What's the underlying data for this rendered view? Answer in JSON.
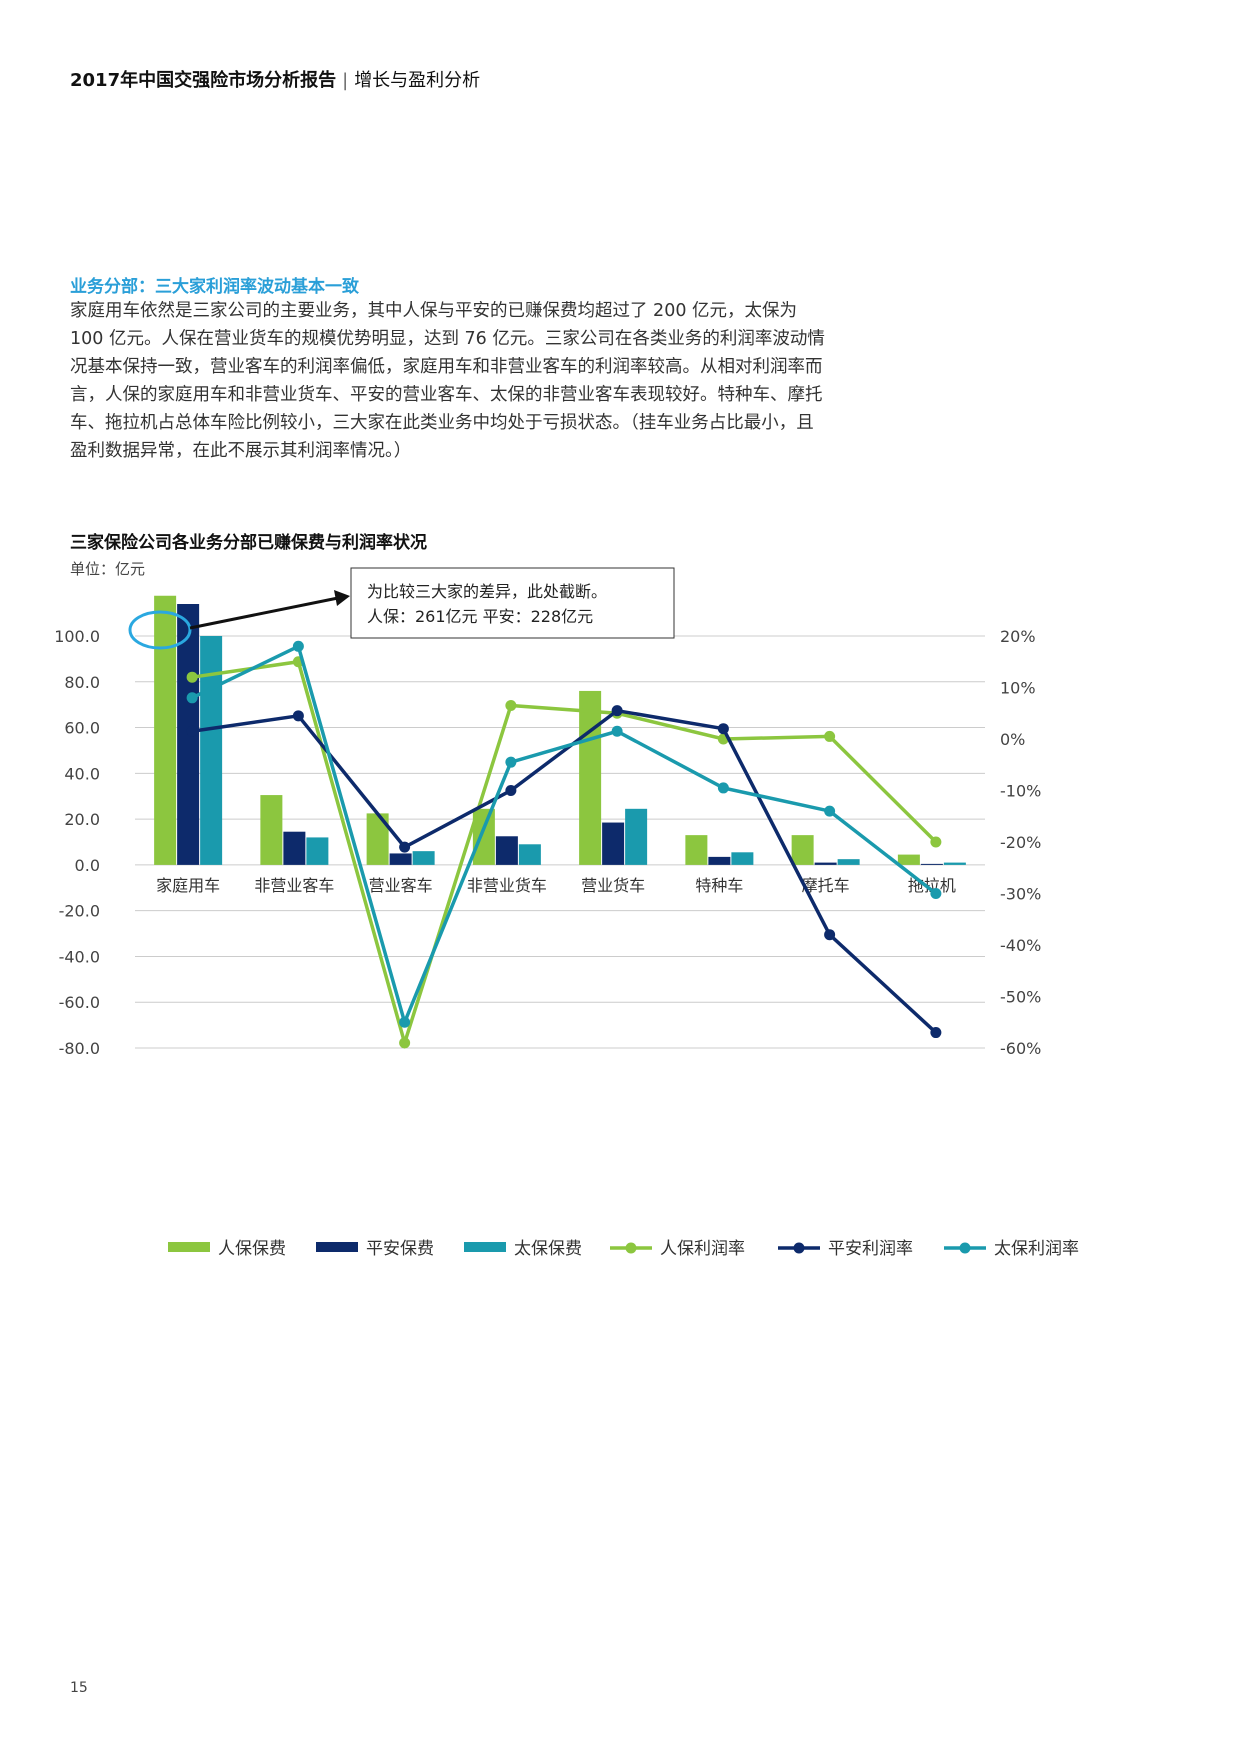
{
  "header": {
    "report_title": "2017年中国交强险市场分析报告",
    "section": "增长与盈利分析"
  },
  "section_heading": "业务分部：三大家利润率波动基本一致",
  "body_text": "家庭用车依然是三家公司的主要业务，其中人保与平安的已赚保费均超过了 200 亿元，太保为 100 亿元。人保在营业货车的规模优势明显，达到 76 亿元。三家公司在各类业务的利润率波动情况基本保持一致，营业客车的利润率偏低，家庭用车和非营业客车的利润率较高。从相对利润率而言，人保的家庭用车和非营业货车、平安的营业客车、太保的非营业客车表现较好。特种车、摩托车、拖拉机占总体车险比例较小，三大家在此类业务中均处于亏损状态。（挂车业务占比最小，且盈利数据异常，在此不展示其利润率情况。）",
  "chart_title": "三家保险公司各业务分部已赚保费与利润率状况",
  "unit_label": "单位：亿元",
  "page_number": "15",
  "colors": {
    "green": "#8cc63f",
    "navy": "#0d2a6b",
    "teal": "#1a9aad",
    "grid": "#cccccc",
    "text": "#444444"
  },
  "chart_data": {
    "type": "bar+line",
    "categories": [
      "家庭用车",
      "非营业客车",
      "营业客车",
      "非营业货车",
      "营业货车",
      "特种车",
      "摩托车",
      "拖拉机"
    ],
    "left_axis": {
      "ylim": [
        -80,
        100
      ],
      "ticks": [
        "100.0",
        "80.0",
        "60.0",
        "40.0",
        "20.0",
        "0.0",
        "-20.0",
        "-40.0",
        "-60.0",
        "-80.0"
      ]
    },
    "right_axis": {
      "ylim": [
        -60,
        20
      ],
      "ticks": [
        "20%",
        "10%",
        "0%",
        "-10%",
        "-20%",
        "-30%",
        "-40%",
        "-50%",
        "-60%"
      ]
    },
    "bar_series": [
      {
        "name": "人保保费",
        "color": "#8cc63f",
        "values": [
          261,
          30.5,
          22.5,
          24.5,
          76,
          13,
          13,
          4.5
        ]
      },
      {
        "name": "平安保费",
        "color": "#0d2a6b",
        "values": [
          228,
          14.5,
          5,
          12.5,
          18.5,
          3.5,
          1,
          0.3
        ]
      },
      {
        "name": "太保保费",
        "color": "#1a9aad",
        "values": [
          100,
          12,
          6,
          9,
          24.5,
          5.5,
          2.5,
          1
        ]
      }
    ],
    "line_series": [
      {
        "name": "人保利润率",
        "color": "#8cc63f",
        "values": [
          12,
          15,
          -59,
          6.5,
          5,
          0,
          0.5,
          -20
        ]
      },
      {
        "name": "平安利润率",
        "color": "#0d2a6b",
        "values": [
          1.5,
          4.5,
          -21,
          -10,
          5.5,
          2,
          -38,
          -57
        ]
      },
      {
        "name": "太保利润率",
        "color": "#1a9aad",
        "values": [
          8,
          18,
          -55,
          -4.5,
          1.5,
          -9.5,
          -14,
          -30
        ]
      }
    ],
    "annotation": {
      "lines": [
        "为比较三大家的差异，此处截断。",
        "人保：261亿元  平安：228亿元"
      ]
    },
    "legend": [
      "人保保费",
      "平安保费",
      "太保保费",
      "人保利润率",
      "平安利润率",
      "太保利润率"
    ]
  }
}
